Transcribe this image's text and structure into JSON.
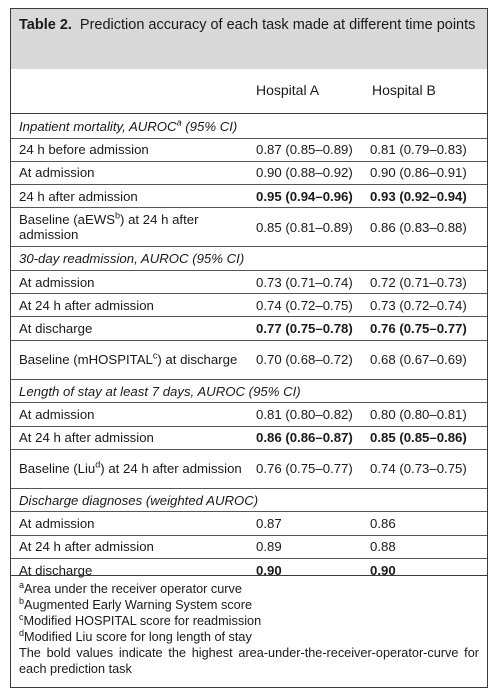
{
  "table": {
    "label": "Table 2.",
    "title": "Prediction accuracy of each task made at different time points",
    "columns": [
      "Hospital A",
      "Hospital B"
    ],
    "sections": [
      {
        "heading": "Inpatient mortality, AUROC",
        "heading_sup": "a",
        "heading_suffix": " (95% CI)",
        "rows": [
          {
            "label": "24 h before admission",
            "a": "0.87 (0.85–0.89)",
            "b": "0.81 (0.79–0.83)",
            "bold": false
          },
          {
            "label": "At admission",
            "a": "0.90 (0.88–0.92)",
            "b": "0.90 (0.86–0.91)",
            "bold": false
          },
          {
            "label": "24 h after admission",
            "a": "0.95 (0.94–0.96)",
            "b": "0.93 (0.92–0.94)",
            "bold": true
          },
          {
            "label": "Baseline (aEWS",
            "label_sup": "b",
            "label_suffix": ") at 24 h after admission",
            "a": "0.85 (0.81–0.89)",
            "b": "0.86 (0.83–0.88)",
            "bold": false
          }
        ]
      },
      {
        "heading": "30-day readmission, AUROC (95% CI)",
        "rows": [
          {
            "label": "At admission",
            "a": "0.73 (0.71–0.74)",
            "b": "0.72 (0.71–0.73)",
            "bold": false
          },
          {
            "label": "At 24 h after admission",
            "a": "0.74 (0.72–0.75)",
            "b": "0.73 (0.72–0.74)",
            "bold": false
          },
          {
            "label": "At discharge",
            "a": "0.77 (0.75–0.78)",
            "b": "0.76 (0.75–0.77)",
            "bold": true
          },
          {
            "label": "Baseline (mHOSPITAL",
            "label_sup": "c",
            "label_suffix": ") at discharge",
            "a": "0.70 (0.68–0.72)",
            "b": "0.68 (0.67–0.69)",
            "bold": false
          }
        ]
      },
      {
        "heading": "Length of stay at least 7 days, AUROC (95% CI)",
        "rows": [
          {
            "label": "At admission",
            "a": "0.81 (0.80–0.82)",
            "b": "0.80 (0.80–0.81)",
            "bold": false
          },
          {
            "label": "At 24 h after admission",
            "a": "0.86 (0.86–0.87)",
            "b": "0.85 (0.85–0.86)",
            "bold": true
          },
          {
            "label": "Baseline (Liu",
            "label_sup": "d",
            "label_suffix": ") at 24 h after admission",
            "a": "0.76 (0.75–0.77)",
            "b": "0.74 (0.73–0.75)",
            "bold": false
          }
        ]
      },
      {
        "heading": "Discharge diagnoses (weighted AUROC)",
        "rows": [
          {
            "label": "At admission",
            "a": "0.87",
            "b": "0.86",
            "bold": false
          },
          {
            "label": "At 24 h after admission",
            "a": "0.89",
            "b": "0.88",
            "bold": false
          },
          {
            "label": "At discharge",
            "a": "0.90",
            "b": "0.90",
            "bold": true
          }
        ]
      }
    ],
    "footnotes": [
      {
        "sup": "a",
        "text": "Area under the receiver operator curve"
      },
      {
        "sup": "b",
        "text": "Augmented Early Warning System score"
      },
      {
        "sup": "c",
        "text": "Modified HOSPITAL score for readmission"
      },
      {
        "sup": "d",
        "text": "Modified Liu score for long length of stay"
      }
    ],
    "note": "The bold values indicate the highest area-under-the-receiver-operator-curve for each prediction task"
  }
}
